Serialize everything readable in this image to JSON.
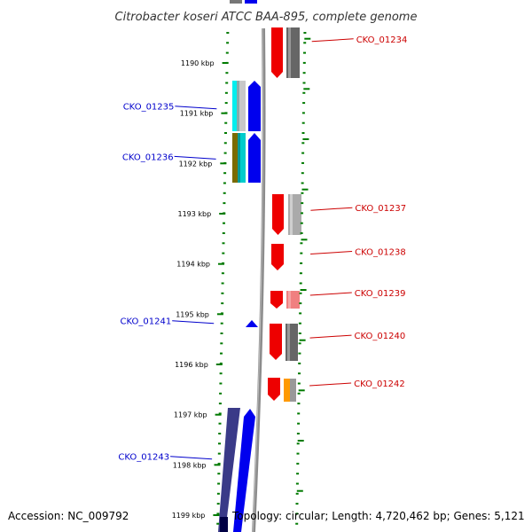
{
  "title": "Citrobacter koseri ATCC BAA-895, complete genome",
  "footer": {
    "accession": "Accession: NC_009792",
    "summary": "Topology: circular; Length: 4,720,462 bp; Genes: 5,121"
  },
  "colors": {
    "backbone": "#8c8c8c",
    "tick": "#007a00",
    "forward_label": "#cc0000",
    "reverse_label": "#0000cc"
  },
  "chart_data": {
    "type": "genome-map",
    "position_unit": "kbp",
    "axis_range_kbp": [
      1189.2,
      1199.2
    ],
    "tick_labels": [
      {
        "kbp": 1190,
        "label": "1190 kbp"
      },
      {
        "kbp": 1191,
        "label": "1191 kbp"
      },
      {
        "kbp": 1192,
        "label": "1192 kbp"
      },
      {
        "kbp": 1193,
        "label": "1193 kbp"
      },
      {
        "kbp": 1194,
        "label": "1194 kbp"
      },
      {
        "kbp": 1195,
        "label": "1195 kbp"
      },
      {
        "kbp": 1196,
        "label": "1196 kbp"
      },
      {
        "kbp": 1197,
        "label": "1197 kbp"
      },
      {
        "kbp": 1198,
        "label": "1198 kbp"
      },
      {
        "kbp": 1199,
        "label": "1199 kbp"
      }
    ],
    "labeled_genes": [
      {
        "name": "CKO_01234",
        "strand": "+",
        "kbp": 1189.52
      },
      {
        "name": "CKO_01235",
        "strand": "-",
        "kbp": 1190.86
      },
      {
        "name": "CKO_01236",
        "strand": "-",
        "kbp": 1191.86
      },
      {
        "name": "CKO_01237",
        "strand": "+",
        "kbp": 1192.88
      },
      {
        "name": "CKO_01238",
        "strand": "+",
        "kbp": 1193.75
      },
      {
        "name": "CKO_01239",
        "strand": "+",
        "kbp": 1194.57
      },
      {
        "name": "CKO_01240",
        "strand": "+",
        "kbp": 1195.42
      },
      {
        "name": "CKO_01241",
        "strand": "-",
        "kbp": 1195.13
      },
      {
        "name": "CKO_01242",
        "strand": "+",
        "kbp": 1196.37
      },
      {
        "name": "CKO_01243",
        "strand": "-",
        "kbp": 1197.83
      }
    ]
  }
}
